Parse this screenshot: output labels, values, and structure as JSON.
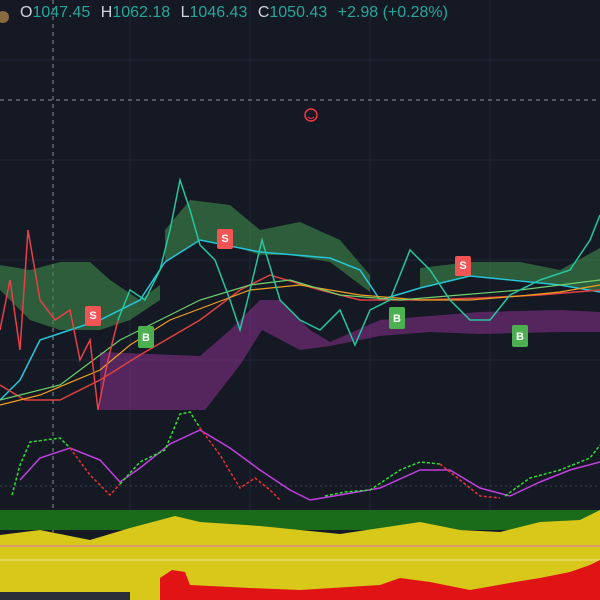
{
  "header": {
    "open_label": "O",
    "open": "1047.45",
    "high_label": "H",
    "high": "1062.18",
    "low_label": "L",
    "low": "1046.43",
    "close_label": "C",
    "close": "1050.43",
    "change": "+2.98 (+0.28%)"
  },
  "signals": [
    {
      "label": "S"
    },
    {
      "label": "S"
    },
    {
      "label": "S"
    },
    {
      "label": "B"
    },
    {
      "label": "B"
    },
    {
      "label": "B"
    }
  ]
}
